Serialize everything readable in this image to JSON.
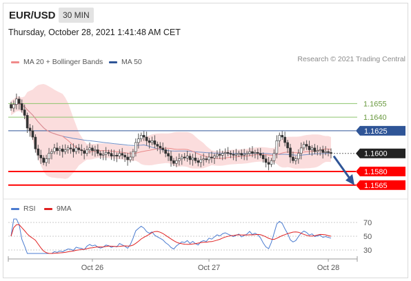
{
  "header": {
    "symbol": "EUR/USD",
    "timeframe": "30 MIN"
  },
  "datetime": "Thursday, October 28, 2021 1:41:48 AM CET",
  "legend_main": [
    {
      "label": "MA 20 + Bollinger Bands",
      "color": "#f08a8a"
    },
    {
      "label": "MA 50",
      "color": "#2f5597"
    }
  ],
  "research": "Research © 2021 Trading Central",
  "legend_rsi": [
    {
      "label": "RSI",
      "color": "#4a7bd0"
    },
    {
      "label": "9MA",
      "color": "#e02020"
    }
  ],
  "colors": {
    "green_line": "#8cc46c",
    "blue_line": "#2f5597",
    "red_line": "#ff0000",
    "candle": "#555555"
  },
  "chart_data": [
    {
      "type": "candlestick",
      "ylim": [
        1.1558,
        1.1672
      ],
      "levels": [
        {
          "value": 1.1655,
          "label": "1.1655",
          "style": "green"
        },
        {
          "value": 1.164,
          "label": "1.1640",
          "style": "green"
        },
        {
          "value": 1.1625,
          "label": "1.1625",
          "style": "blue"
        },
        {
          "value": 1.16,
          "label": "1.1600",
          "style": "current"
        },
        {
          "value": 1.158,
          "label": "1.1580",
          "style": "red"
        },
        {
          "value": 1.1565,
          "label": "1.1565",
          "style": "red"
        }
      ],
      "close": [
        1.165,
        1.1654,
        1.166,
        1.1655,
        1.1648,
        1.1642,
        1.1628,
        1.1625,
        1.1618,
        1.1605,
        1.1598,
        1.1595,
        1.159,
        1.1594,
        1.16,
        1.1602,
        1.1606,
        1.1603,
        1.1605,
        1.1602,
        1.1604,
        1.1606,
        1.1605,
        1.1602,
        1.1606,
        1.1604,
        1.1603,
        1.16,
        1.1604,
        1.1606,
        1.1603,
        1.1604,
        1.16,
        1.1598,
        1.1599,
        1.1601,
        1.16,
        1.1597,
        1.1598,
        1.1597,
        1.16,
        1.1598,
        1.1596,
        1.1593,
        1.1596,
        1.1602,
        1.1612,
        1.1616,
        1.162,
        1.1618,
        1.1614,
        1.1612,
        1.1614,
        1.161,
        1.1608,
        1.1606,
        1.1604,
        1.16,
        1.1597,
        1.1592,
        1.1589,
        1.1592,
        1.1594,
        1.1596,
        1.1595,
        1.1597,
        1.1593,
        1.1595,
        1.1592,
        1.159,
        1.1593,
        1.1594,
        1.1593,
        1.1596,
        1.1595,
        1.1597,
        1.1599,
        1.1598,
        1.16,
        1.1601,
        1.16,
        1.1599,
        1.1598,
        1.1599,
        1.16,
        1.1598,
        1.1599,
        1.16,
        1.1602,
        1.16,
        1.1601,
        1.16,
        1.1598,
        1.1594,
        1.159,
        1.1588,
        1.1592,
        1.16,
        1.1614,
        1.162,
        1.1618,
        1.1612,
        1.1606,
        1.1596,
        1.1592,
        1.1594,
        1.16,
        1.1606,
        1.161,
        1.1608,
        1.1604,
        1.1606,
        1.1602,
        1.1603,
        1.1604,
        1.1601,
        1.1602,
        1.1601,
        1.16
      ]
    },
    {
      "type": "line",
      "title": "RSI",
      "ylim": [
        25,
        75
      ],
      "yticks": [
        70,
        50,
        30
      ],
      "xticks": [
        {
          "index": 30,
          "label": "Oct 26"
        },
        {
          "index": 73,
          "label": "Oct 27"
        },
        {
          "index": 117,
          "label": "Oct 28"
        }
      ]
    }
  ]
}
